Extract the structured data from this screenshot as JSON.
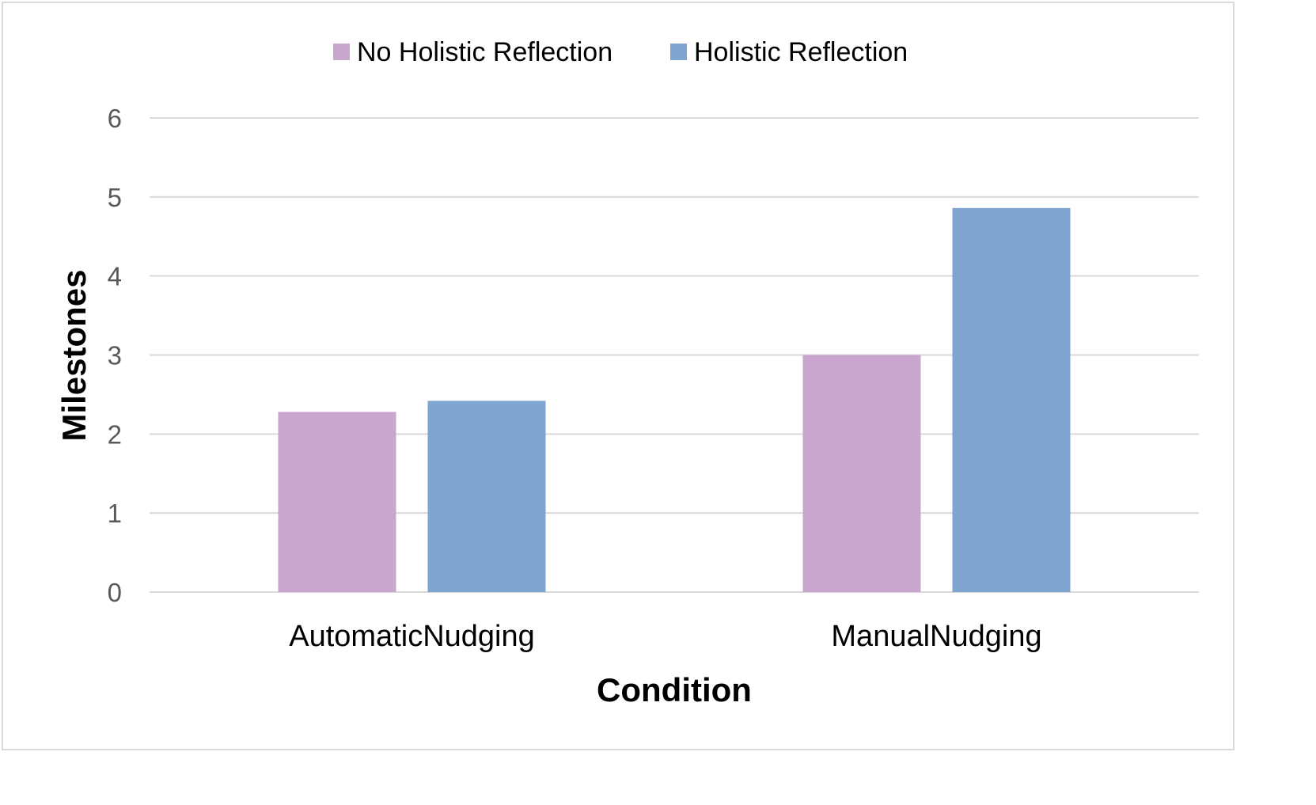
{
  "chart_data": {
    "type": "bar",
    "categories": [
      "AutomaticNudging",
      "ManualNudging"
    ],
    "series": [
      {
        "name": "No Holistic Reflection",
        "values": [
          2.28,
          3.0
        ],
        "color": "#c9a6ce"
      },
      {
        "name": "Holistic Reflection",
        "values": [
          2.42,
          4.86
        ],
        "color": "#7fa4cf"
      }
    ],
    "title": "",
    "xlabel": "Condition",
    "ylabel": "Milestones",
    "ylim": [
      0,
      6
    ],
    "yticks": [
      0,
      1,
      2,
      3,
      4,
      5,
      6
    ],
    "grid": true,
    "legend_position": "top"
  }
}
